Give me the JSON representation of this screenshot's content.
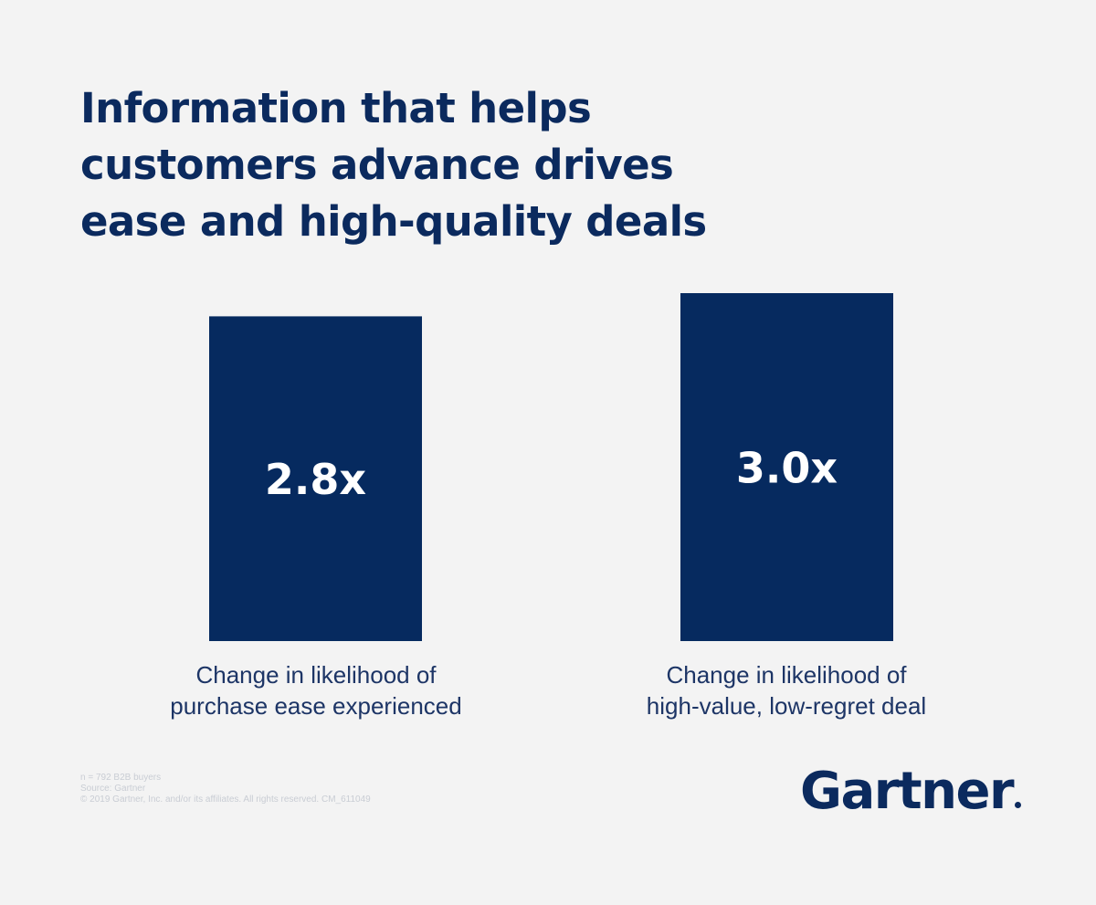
{
  "title_lines": [
    "Information that helps",
    "customers advance drives",
    "ease and high-quality deals"
  ],
  "chart_data": {
    "type": "bar",
    "title": "Information that helps customers advance drives ease and high-quality deals",
    "categories": [
      [
        "Change in likelihood of",
        "purchase ease experienced"
      ],
      [
        "Change in likelihood of",
        "high-value, low-regret deal"
      ]
    ],
    "values": [
      2.8,
      3.0
    ],
    "value_labels": [
      "2.8x",
      "3.0x"
    ],
    "ylim": [
      0,
      3.0
    ],
    "grid": false,
    "legend": "none",
    "bar_color": "#062a5f",
    "value_label_color": "#ffffff"
  },
  "footnote": {
    "lines": [
      "n = 792 B2B buyers",
      "Source: Gartner",
      "© 2019 Gartner, Inc. and/or its affiliates. All rights reserved. CM_611049"
    ]
  },
  "logo": {
    "text": "Gartner"
  },
  "colors": {
    "background": "#f3f3f3",
    "navy": "#0b2a5e",
    "bar": "#062a5f"
  }
}
